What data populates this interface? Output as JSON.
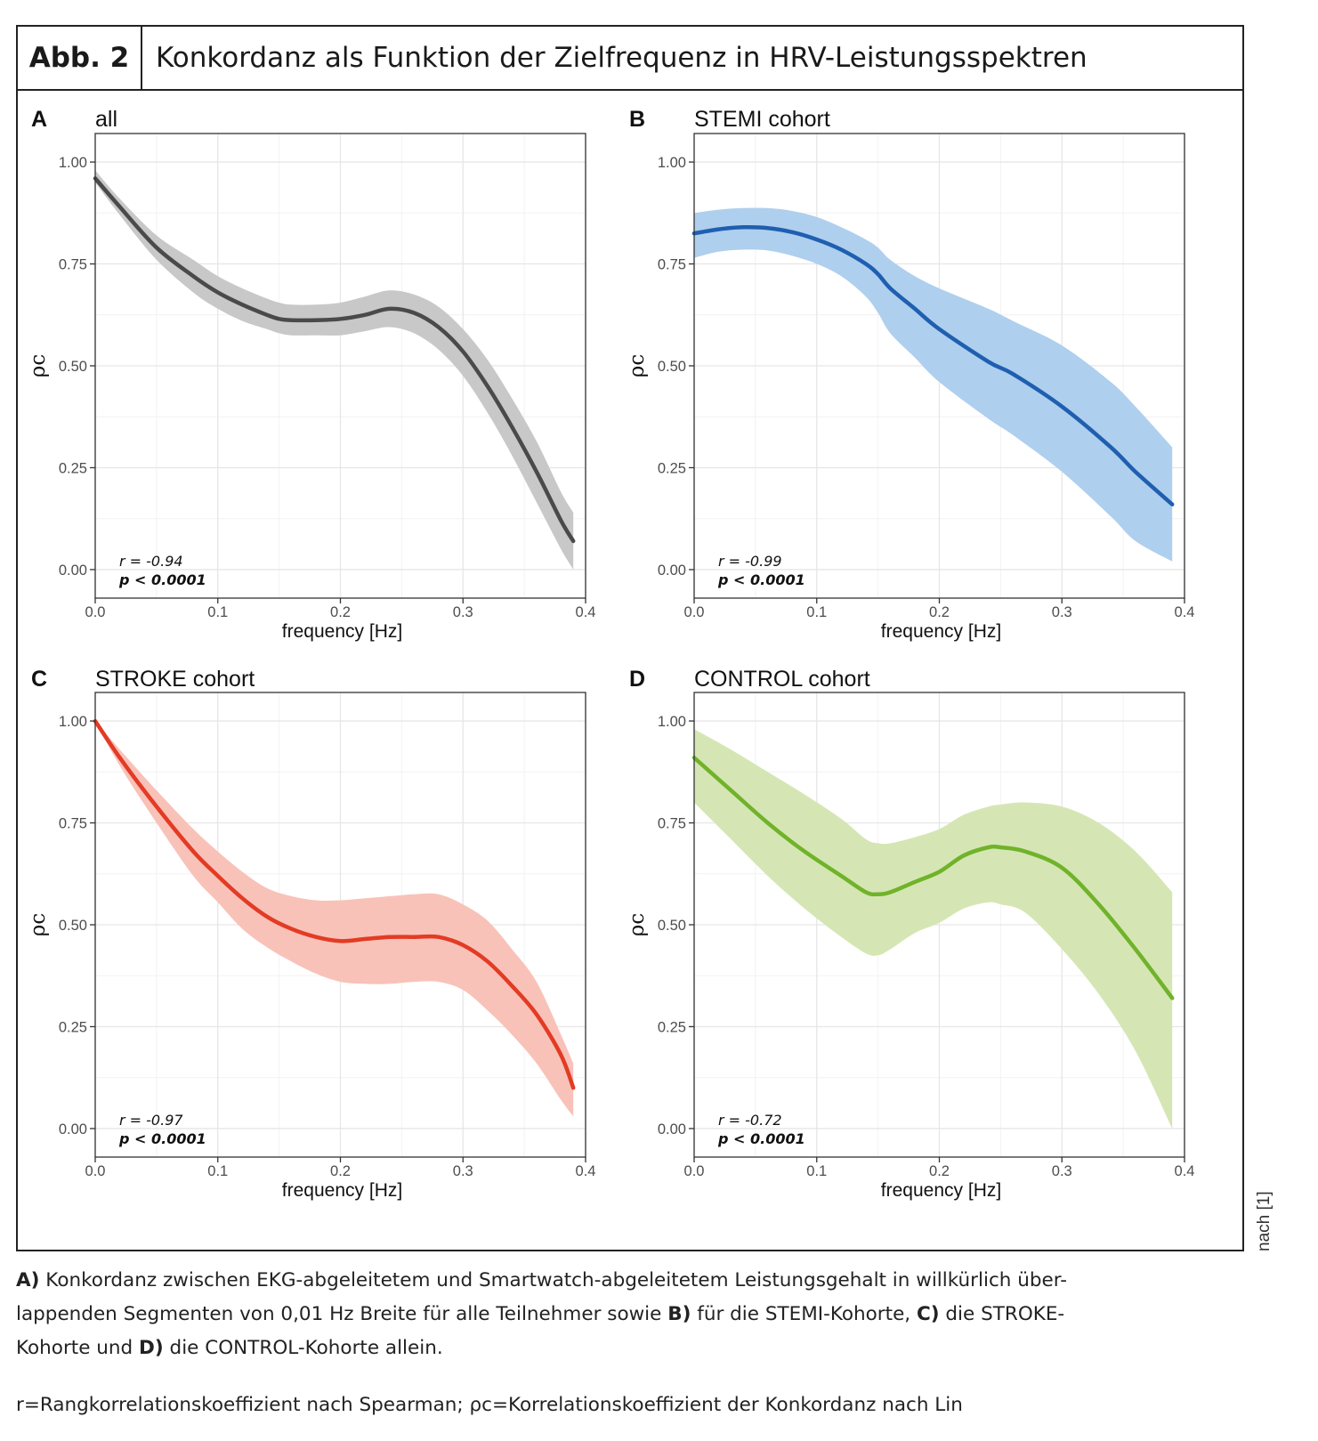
{
  "header": {
    "label": "Abb. 2",
    "title": "Konkordanz als Funktion der Zielfrequenz in HRV-Leistungsspektren"
  },
  "side_note": "nach [1]",
  "caption": {
    "p1_a": "A)",
    "p1_t1": " Konkordanz zwischen EKG-abgeleitetem und Smartwatch-abgeleitetem Leistungsgehalt in willkürlich über-",
    "p1_t2": "lappenden Segmenten von 0,01 Hz Breite für alle Teilnehmer sowie ",
    "p1_b": "B)",
    "p1_t3": " für die STEMI-Kohorte, ",
    "p1_c": "C)",
    "p1_t4": " die STROKE-",
    "p1_t5": "Kohorte und ",
    "p1_d": "D)",
    "p1_t6": " die CONTROL-Kohorte allein.",
    "legend": "r=Rangkorrelationskoeffizient nach Spearman; ρc=Korrelationskoeffizient der Konkordanz nach Lin"
  },
  "chart_data": [
    {
      "type": "line",
      "panel": "A",
      "title": "all",
      "xlabel": "frequency [Hz]",
      "ylabel": "ρc",
      "xlim": [
        0,
        0.4
      ],
      "ylim": [
        -0.07,
        1.07
      ],
      "xticks": [
        "0.0",
        "0.1",
        "0.2",
        "0.3",
        "0.4"
      ],
      "yticks": [
        "0.00",
        "0.25",
        "0.50",
        "0.75",
        "1.00"
      ],
      "grid": true,
      "color": "#4a4a4a",
      "band_color": "#c8c8c8",
      "x": [
        0.0,
        0.02,
        0.05,
        0.08,
        0.1,
        0.12,
        0.14,
        0.15,
        0.16,
        0.18,
        0.2,
        0.22,
        0.24,
        0.26,
        0.28,
        0.3,
        0.32,
        0.34,
        0.36,
        0.38,
        0.39
      ],
      "y": [
        0.96,
        0.89,
        0.79,
        0.72,
        0.68,
        0.65,
        0.625,
        0.615,
        0.612,
        0.612,
        0.615,
        0.625,
        0.64,
        0.63,
        0.595,
        0.535,
        0.45,
        0.35,
        0.24,
        0.12,
        0.07
      ],
      "lower": [
        0.95,
        0.87,
        0.76,
        0.68,
        0.64,
        0.61,
        0.59,
        0.58,
        0.575,
        0.575,
        0.575,
        0.585,
        0.595,
        0.58,
        0.54,
        0.475,
        0.385,
        0.28,
        0.165,
        0.05,
        0.0
      ],
      "upper": [
        0.98,
        0.91,
        0.82,
        0.76,
        0.72,
        0.69,
        0.665,
        0.655,
        0.65,
        0.65,
        0.655,
        0.67,
        0.685,
        0.675,
        0.645,
        0.59,
        0.515,
        0.42,
        0.315,
        0.19,
        0.14
      ],
      "stats": [
        "r = -0.94",
        "p < 0.0001"
      ]
    },
    {
      "type": "line",
      "panel": "B",
      "title": "STEMI cohort",
      "xlabel": "frequency [Hz]",
      "ylabel": "ρc",
      "xlim": [
        0,
        0.4
      ],
      "ylim": [
        -0.07,
        1.07
      ],
      "xticks": [
        "0.0",
        "0.1",
        "0.2",
        "0.3",
        "0.4"
      ],
      "yticks": [
        "0.00",
        "0.25",
        "0.50",
        "0.75",
        "1.00"
      ],
      "grid": true,
      "color": "#1f5fb0",
      "band_color": "#afcfee",
      "x": [
        0.0,
        0.02,
        0.04,
        0.06,
        0.08,
        0.1,
        0.12,
        0.14,
        0.15,
        0.16,
        0.18,
        0.2,
        0.24,
        0.26,
        0.3,
        0.34,
        0.36,
        0.39
      ],
      "y": [
        0.825,
        0.835,
        0.84,
        0.838,
        0.828,
        0.81,
        0.785,
        0.75,
        0.725,
        0.69,
        0.64,
        0.59,
        0.51,
        0.48,
        0.4,
        0.3,
        0.24,
        0.16
      ],
      "lower": [
        0.765,
        0.78,
        0.785,
        0.783,
        0.77,
        0.75,
        0.72,
        0.67,
        0.63,
        0.58,
        0.52,
        0.46,
        0.37,
        0.33,
        0.24,
        0.13,
        0.07,
        0.02
      ],
      "upper": [
        0.875,
        0.883,
        0.887,
        0.887,
        0.88,
        0.865,
        0.84,
        0.81,
        0.79,
        0.76,
        0.72,
        0.69,
        0.64,
        0.61,
        0.55,
        0.46,
        0.4,
        0.3
      ],
      "stats": [
        "r = -0.99",
        "p < 0.0001"
      ]
    },
    {
      "type": "line",
      "panel": "C",
      "title": "STROKE cohort",
      "xlabel": "frequency [Hz]",
      "ylabel": "ρc",
      "xlim": [
        0,
        0.4
      ],
      "ylim": [
        -0.07,
        1.07
      ],
      "xticks": [
        "0.0",
        "0.1",
        "0.2",
        "0.3",
        "0.4"
      ],
      "yticks": [
        "0.00",
        "0.25",
        "0.50",
        "0.75",
        "1.00"
      ],
      "grid": true,
      "color": "#e33b24",
      "band_color": "#f8c2b9",
      "x": [
        0.0,
        0.02,
        0.05,
        0.08,
        0.1,
        0.12,
        0.14,
        0.16,
        0.18,
        0.2,
        0.22,
        0.24,
        0.26,
        0.28,
        0.3,
        0.32,
        0.34,
        0.36,
        0.38,
        0.39
      ],
      "y": [
        1.0,
        0.91,
        0.79,
        0.68,
        0.62,
        0.565,
        0.52,
        0.49,
        0.47,
        0.46,
        0.465,
        0.47,
        0.47,
        0.47,
        0.45,
        0.41,
        0.35,
        0.28,
        0.18,
        0.1
      ],
      "lower": [
        1.0,
        0.89,
        0.75,
        0.62,
        0.555,
        0.49,
        0.445,
        0.41,
        0.38,
        0.36,
        0.355,
        0.355,
        0.36,
        0.36,
        0.34,
        0.29,
        0.23,
        0.16,
        0.07,
        0.03
      ],
      "upper": [
        1.0,
        0.93,
        0.83,
        0.735,
        0.68,
        0.63,
        0.59,
        0.57,
        0.56,
        0.56,
        0.565,
        0.57,
        0.575,
        0.575,
        0.55,
        0.51,
        0.44,
        0.36,
        0.23,
        0.16
      ],
      "stats": [
        "r = -0.97",
        "p < 0.0001"
      ]
    },
    {
      "type": "line",
      "panel": "D",
      "title": "CONTROL cohort",
      "xlabel": "frequency [Hz]",
      "ylabel": "ρc",
      "xlim": [
        0,
        0.4
      ],
      "ylim": [
        -0.07,
        1.07
      ],
      "xticks": [
        "0.0",
        "0.1",
        "0.2",
        "0.3",
        "0.4"
      ],
      "yticks": [
        "0.00",
        "0.25",
        "0.50",
        "0.75",
        "1.00"
      ],
      "grid": true,
      "color": "#70b32a",
      "band_color": "#d5e6b4",
      "x": [
        0.0,
        0.03,
        0.06,
        0.09,
        0.12,
        0.14,
        0.15,
        0.16,
        0.18,
        0.2,
        0.22,
        0.24,
        0.25,
        0.27,
        0.3,
        0.33,
        0.36,
        0.39
      ],
      "y": [
        0.91,
        0.83,
        0.75,
        0.68,
        0.62,
        0.58,
        0.575,
        0.58,
        0.605,
        0.63,
        0.67,
        0.69,
        0.69,
        0.68,
        0.64,
        0.55,
        0.44,
        0.32
      ],
      "lower": [
        0.8,
        0.71,
        0.62,
        0.54,
        0.47,
        0.43,
        0.425,
        0.44,
        0.48,
        0.505,
        0.54,
        0.555,
        0.55,
        0.53,
        0.44,
        0.33,
        0.19,
        0.0
      ],
      "upper": [
        0.98,
        0.93,
        0.875,
        0.82,
        0.76,
        0.71,
        0.7,
        0.7,
        0.715,
        0.735,
        0.77,
        0.79,
        0.795,
        0.8,
        0.79,
        0.75,
        0.68,
        0.58
      ],
      "stats": [
        "r = -0.72",
        "p < 0.0001"
      ]
    }
  ]
}
